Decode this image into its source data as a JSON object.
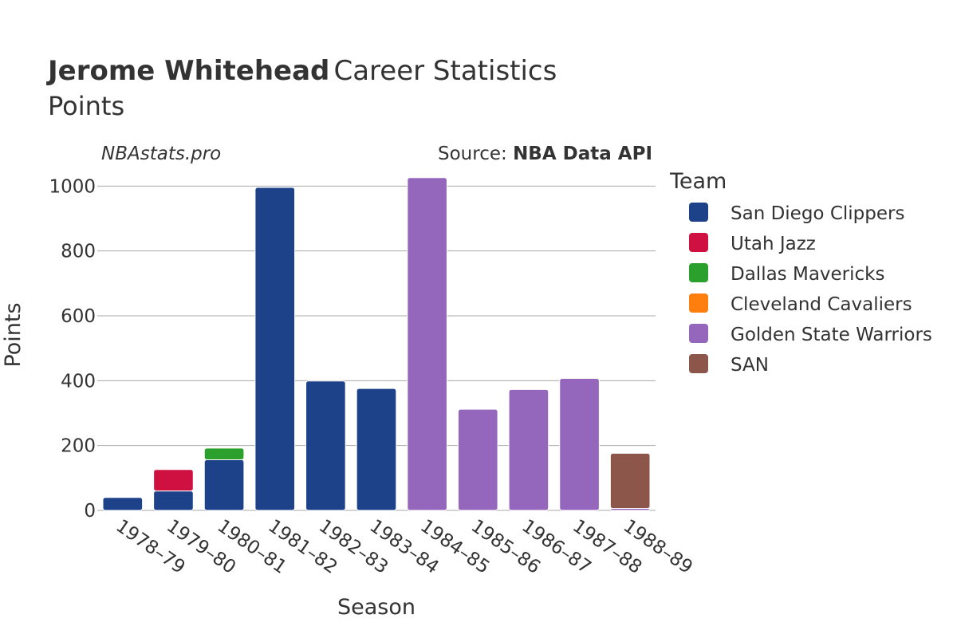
{
  "header": {
    "title_bold": "Jerome Whitehead",
    "title_rest": "Career Statistics",
    "subtitle": "Points",
    "brand": "NBAstats.pro",
    "source_prefix": "Source: ",
    "source_name": "NBA Data API"
  },
  "colors": {
    "San Diego Clippers": "#1d428a",
    "Utah Jazz": "#ce1141",
    "Dallas Mavericks": "#2ca02c",
    "Cleveland Cavaliers": "#ff7f0e",
    "Golden State Warriors": "#9467bd",
    "SAN": "#8c564b",
    "grid": "#a8a8a8",
    "text": "#333333"
  },
  "chart_data": {
    "type": "bar",
    "stacked": true,
    "title": "Jerome Whitehead Career Statistics",
    "subtitle": "Points",
    "xlabel": "Season",
    "ylabel": "Points",
    "ylim": [
      0,
      1050
    ],
    "yticks": [
      0,
      200,
      400,
      600,
      800,
      1000
    ],
    "grid": true,
    "legend_title": "Team",
    "legend_position": "right",
    "categories": [
      "1978–79",
      "1979–80",
      "1980–81",
      "1981–82",
      "1982–83",
      "1983–84",
      "1984–85",
      "1985–86",
      "1986–87",
      "1987–88",
      "1988–89"
    ],
    "series": [
      {
        "name": "San Diego Clippers",
        "values": [
          40,
          60,
          156,
          996,
          399,
          376,
          0,
          0,
          0,
          0,
          0
        ]
      },
      {
        "name": "Utah Jazz",
        "values": [
          0,
          66,
          0,
          0,
          0,
          0,
          0,
          0,
          0,
          0,
          0
        ]
      },
      {
        "name": "Dallas Mavericks",
        "values": [
          0,
          0,
          36,
          0,
          0,
          0,
          0,
          0,
          0,
          0,
          0
        ]
      },
      {
        "name": "Cleveland Cavaliers",
        "values": [
          0,
          0,
          0,
          0,
          0,
          0,
          0,
          0,
          0,
          0,
          0
        ]
      },
      {
        "name": "Golden State Warriors",
        "values": [
          0,
          0,
          0,
          0,
          0,
          0,
          1026,
          312,
          373,
          407,
          6
        ]
      },
      {
        "name": "SAN",
        "values": [
          0,
          0,
          0,
          0,
          0,
          0,
          0,
          0,
          0,
          0,
          170
        ]
      }
    ]
  }
}
